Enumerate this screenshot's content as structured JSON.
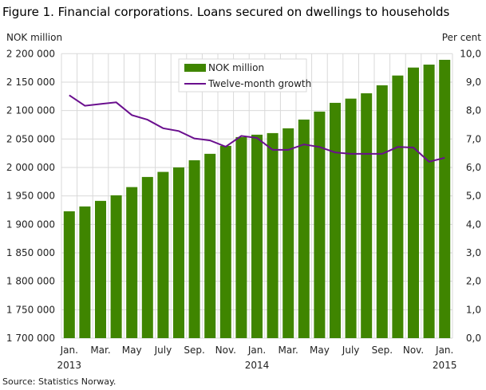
{
  "chart_data": {
    "type": "bar+line",
    "title": "Figure 1. Financial corporations. Loans secured on dwellings to households",
    "ylabel_left": "NOK million",
    "ylabel_right": "Per cent",
    "source": "Source: Statistics Norway.",
    "categories": [
      "2013-01",
      "2013-02",
      "2013-03",
      "2013-04",
      "2013-05",
      "2013-06",
      "2013-07",
      "2013-08",
      "2013-09",
      "2013-10",
      "2013-11",
      "2013-12",
      "2014-01",
      "2014-02",
      "2014-03",
      "2014-04",
      "2014-05",
      "2014-06",
      "2014-07",
      "2014-08",
      "2014-09",
      "2014-10",
      "2014-11",
      "2014-12",
      "2015-01"
    ],
    "x_tick_labels": [
      {
        "label": "Jan.",
        "year": "2013"
      },
      {
        "label": ""
      },
      {
        "label": "Mar."
      },
      {
        "label": ""
      },
      {
        "label": "May"
      },
      {
        "label": ""
      },
      {
        "label": "July"
      },
      {
        "label": ""
      },
      {
        "label": "Sep."
      },
      {
        "label": ""
      },
      {
        "label": "Nov."
      },
      {
        "label": ""
      },
      {
        "label": "Jan.",
        "year": "2014"
      },
      {
        "label": ""
      },
      {
        "label": "Mar."
      },
      {
        "label": ""
      },
      {
        "label": "May"
      },
      {
        "label": ""
      },
      {
        "label": "July"
      },
      {
        "label": ""
      },
      {
        "label": "Sep."
      },
      {
        "label": ""
      },
      {
        "label": "Nov."
      },
      {
        "label": ""
      },
      {
        "label": "Jan.",
        "year": "2015"
      }
    ],
    "series": [
      {
        "name": "NOK million",
        "type": "bar",
        "axis": "left",
        "color": "#3f8500",
        "values": [
          1923000,
          1931500,
          1941300,
          1951100,
          1965500,
          1983300,
          1992200,
          2000100,
          2012700,
          2024000,
          2038000,
          2053400,
          2057600,
          2060400,
          2068800,
          2084200,
          2098200,
          2113600,
          2121000,
          2130400,
          2144400,
          2161600,
          2175600,
          2180800,
          2189200
        ]
      },
      {
        "name": "Twelve-month growth",
        "type": "line",
        "axis": "right",
        "color": "#6a0f8e",
        "values": [
          8.54,
          8.17,
          8.23,
          8.29,
          7.84,
          7.68,
          7.38,
          7.28,
          7.02,
          6.95,
          6.73,
          7.11,
          7.04,
          6.62,
          6.62,
          6.81,
          6.72,
          6.53,
          6.48,
          6.48,
          6.48,
          6.72,
          6.7,
          6.2,
          6.34
        ]
      }
    ],
    "ylim_left": [
      1700000,
      2200000
    ],
    "yticks_left": [
      "1 700 000",
      "1 750 000",
      "1 800 000",
      "1 850 000",
      "1 900 000",
      "1 950 000",
      "2 000 000",
      "2 050 000",
      "2 100 000",
      "2 150 000",
      "2 200 000"
    ],
    "ylim_right": [
      0,
      10
    ],
    "yticks_right": [
      "0,0",
      "1,0",
      "2,0",
      "3,0",
      "4,0",
      "5,0",
      "6,0",
      "7,0",
      "8,0",
      "9,0",
      "10,0"
    ],
    "grid": true,
    "legend_position": "top-center"
  }
}
